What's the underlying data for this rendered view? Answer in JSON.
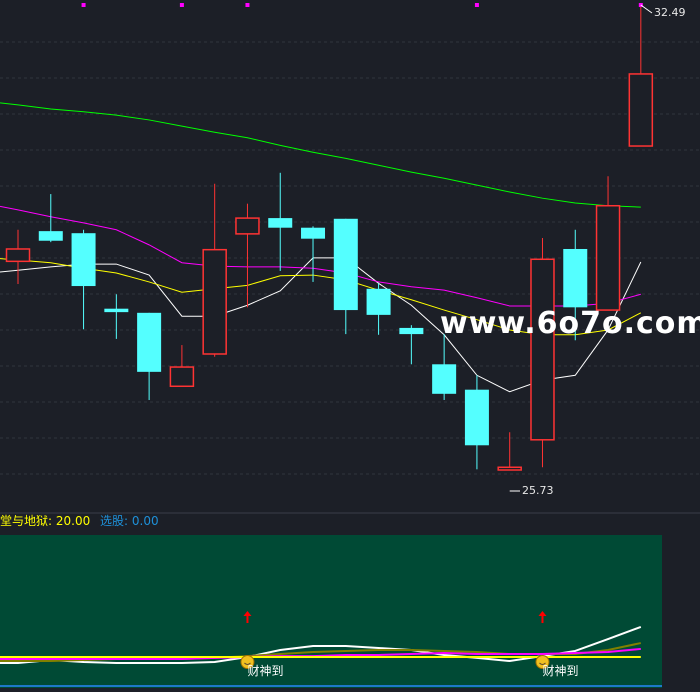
{
  "chart_data": {
    "type": "candlestick",
    "price_range": [
      25.73,
      32.49
    ],
    "grid": true,
    "up_color": "#ff3333",
    "down_color": "#54ffff",
    "candles": [
      {
        "o": 28.77,
        "c": 28.95,
        "h": 29.23,
        "l": 28.44
      },
      {
        "o": 29.21,
        "c": 29.07,
        "h": 29.75,
        "l": 29.05
      },
      {
        "o": 29.18,
        "c": 28.41,
        "h": 29.23,
        "l": 27.78
      },
      {
        "o": 28.08,
        "c": 28.03,
        "h": 28.29,
        "l": 27.64
      },
      {
        "o": 28.02,
        "c": 27.16,
        "h": 28.02,
        "l": 26.75
      },
      {
        "o": 26.95,
        "c": 27.23,
        "h": 27.55,
        "l": 26.95
      },
      {
        "o": 27.42,
        "c": 28.94,
        "h": 29.9,
        "l": 27.38
      },
      {
        "o": 29.17,
        "c": 29.4,
        "h": 29.61,
        "l": 28.1
      },
      {
        "o": 29.4,
        "c": 29.26,
        "h": 30.06,
        "l": 28.63
      },
      {
        "o": 29.26,
        "c": 29.1,
        "h": 29.28,
        "l": 28.47
      },
      {
        "o": 29.39,
        "c": 28.06,
        "h": 29.39,
        "l": 27.71
      },
      {
        "o": 28.37,
        "c": 27.99,
        "h": 28.45,
        "l": 27.7
      },
      {
        "o": 27.8,
        "c": 27.71,
        "h": 27.84,
        "l": 27.27
      },
      {
        "o": 27.27,
        "c": 26.84,
        "h": 27.71,
        "l": 26.75
      },
      {
        "o": 26.9,
        "c": 26.09,
        "h": 27.11,
        "l": 25.74
      },
      {
        "o": 25.73,
        "c": 25.77,
        "h": 26.28,
        "l": 25.73
      },
      {
        "o": 26.17,
        "c": 28.8,
        "h": 29.11,
        "l": 25.77
      },
      {
        "o": 28.95,
        "c": 28.1,
        "h": 29.23,
        "l": 27.62
      },
      {
        "o": 28.06,
        "c": 29.58,
        "h": 30.01,
        "l": 28.06
      },
      {
        "o": 30.45,
        "c": 31.5,
        "h": 32.49,
        "l": 30.45
      }
    ],
    "moving_averages": [
      {
        "color": "#ffffff",
        "values": [
          28.64,
          28.69,
          28.73,
          28.73,
          28.57,
          27.97,
          27.97,
          28.13,
          28.34,
          28.82,
          28.82,
          28.45,
          28.13,
          27.7,
          27.11,
          26.87,
          27.04,
          27.11,
          27.77,
          28.76
        ]
      },
      {
        "color": "#ffff00",
        "values": [
          28.79,
          28.75,
          28.67,
          28.6,
          28.47,
          28.32,
          28.37,
          28.42,
          28.56,
          28.57,
          28.5,
          28.35,
          28.21,
          28.06,
          27.92,
          27.77,
          27.7,
          27.7,
          27.77,
          28.02
        ]
      },
      {
        "color": "#ff00ff",
        "values": [
          29.52,
          29.42,
          29.33,
          29.23,
          29.01,
          28.75,
          28.7,
          28.69,
          28.69,
          28.67,
          28.6,
          28.47,
          28.4,
          28.35,
          28.24,
          28.12,
          28.12,
          28.12,
          28.16,
          28.29
        ]
      },
      {
        "color": "#00ff00",
        "values": [
          31.05,
          30.99,
          30.95,
          30.9,
          30.83,
          30.74,
          30.65,
          30.57,
          30.46,
          30.36,
          30.27,
          30.17,
          30.07,
          29.98,
          29.88,
          29.78,
          29.69,
          29.62,
          29.58,
          29.56
        ]
      }
    ],
    "high_label": "32.49",
    "low_label": "25.73",
    "top_markers": [
      2,
      5,
      7,
      14,
      19
    ],
    "indicator": {
      "background": "#004a35",
      "legend": [
        {
          "text": "堂与地狱: 20.00",
          "color": "#ffff00"
        },
        {
          "text": "选股: 0.00",
          "color": "#1e90d8"
        }
      ],
      "series": [
        {
          "color": "#ffffff",
          "values": [
            16.1,
            18.1,
            16.8,
            16.1,
            16.1,
            16.1,
            16.8,
            20.0,
            24.5,
            27.1,
            27.1,
            25.8,
            24.5,
            21.3,
            19.4,
            17.4,
            20.6,
            23.9,
            31.6,
            39.4
          ]
        },
        {
          "color": "#808000",
          "values": [
            17.4,
            17.4,
            18.1,
            18.7,
            18.7,
            18.7,
            19.4,
            20.6,
            21.9,
            23.2,
            23.9,
            24.5,
            24.5,
            23.9,
            23.2,
            21.9,
            21.9,
            21.9,
            24.5,
            29.0
          ]
        },
        {
          "color": "#ff00ff",
          "values": [
            18.7,
            18.7,
            18.7,
            18.7,
            18.7,
            18.7,
            19.4,
            20.0,
            20.6,
            20.6,
            21.3,
            21.3,
            21.9,
            22.6,
            21.9,
            21.9,
            21.9,
            22.6,
            23.2,
            25.2
          ]
        },
        {
          "color": "#ffff00",
          "values": [
            20,
            20,
            20,
            20,
            20,
            20,
            20,
            20,
            20,
            20,
            20,
            20,
            20,
            20,
            20,
            20,
            20,
            20,
            20,
            20
          ]
        }
      ],
      "signals": [
        {
          "index": 7,
          "label": "财神到"
        },
        {
          "index": 16,
          "label": "财神到"
        }
      ]
    }
  },
  "watermark": "www.6o7o.com"
}
